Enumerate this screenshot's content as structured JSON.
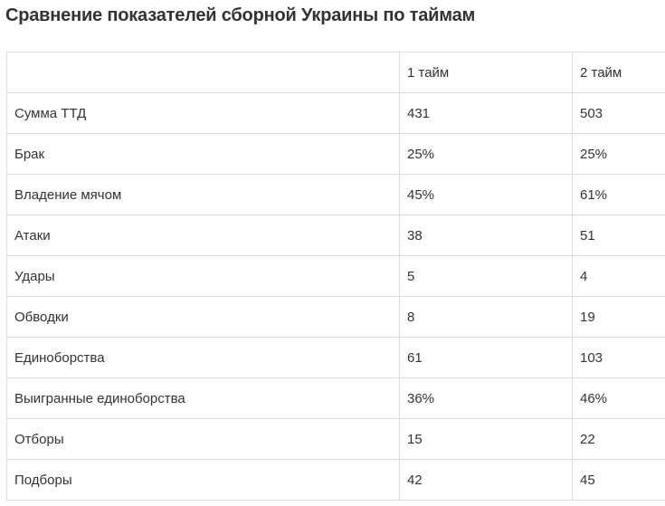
{
  "title": "Сравнение показателей сборной Украины по таймам",
  "table": {
    "headers": [
      "",
      "1 тайм",
      "2 тайм"
    ],
    "rows": [
      [
        "Сумма ТТД",
        "431",
        "503"
      ],
      [
        "Брак",
        "25%",
        "25%"
      ],
      [
        "Владение мячом",
        "45%",
        "61%"
      ],
      [
        "Атаки",
        "38",
        "51"
      ],
      [
        "Удары",
        "5",
        "4"
      ],
      [
        "Обводки",
        "8",
        "19"
      ],
      [
        "Единоборства",
        "61",
        "103"
      ],
      [
        "Выигранные единоборства",
        "36%",
        "46%"
      ],
      [
        "Отборы",
        "15",
        "22"
      ],
      [
        "Подборы",
        "42",
        "45"
      ]
    ]
  }
}
